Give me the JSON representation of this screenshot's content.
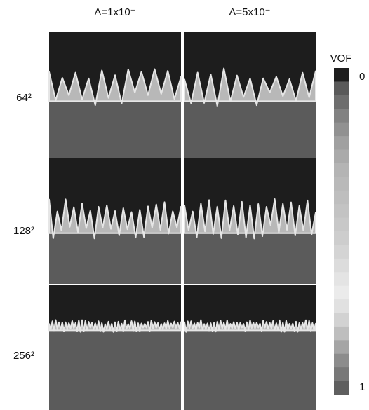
{
  "columns": [
    "A=1x10⁻",
    "A=5x10⁻"
  ],
  "rows": [
    "64²",
    "128²",
    "256²"
  ],
  "colorbar": {
    "title": "VOF",
    "labels": [
      "0",
      "1"
    ]
  }
}
